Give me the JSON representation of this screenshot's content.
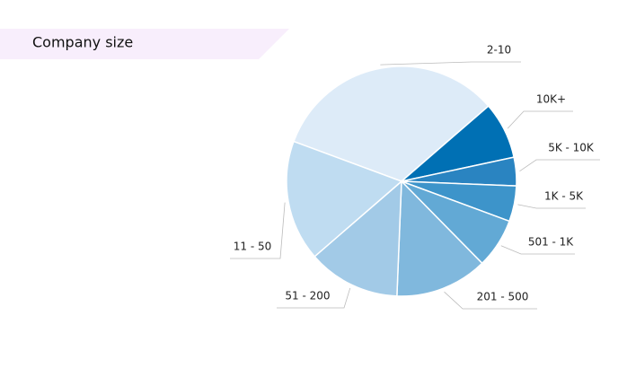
{
  "chart_data": {
    "type": "pie",
    "title": "Company size",
    "categories": [
      "2-10",
      "10K+",
      "5K - 10K",
      "1K - 5K",
      "501 - 1K",
      "201 - 500",
      "51 - 200",
      "11 - 50"
    ],
    "values": [
      33,
      8,
      4,
      5,
      7,
      13,
      13,
      17
    ],
    "colors": [
      "#ddebf8",
      "#0070b4",
      "#2a84c1",
      "#3d94ca",
      "#62a9d5",
      "#80b8dd",
      "#a2cae7",
      "#bfdcf1"
    ]
  }
}
